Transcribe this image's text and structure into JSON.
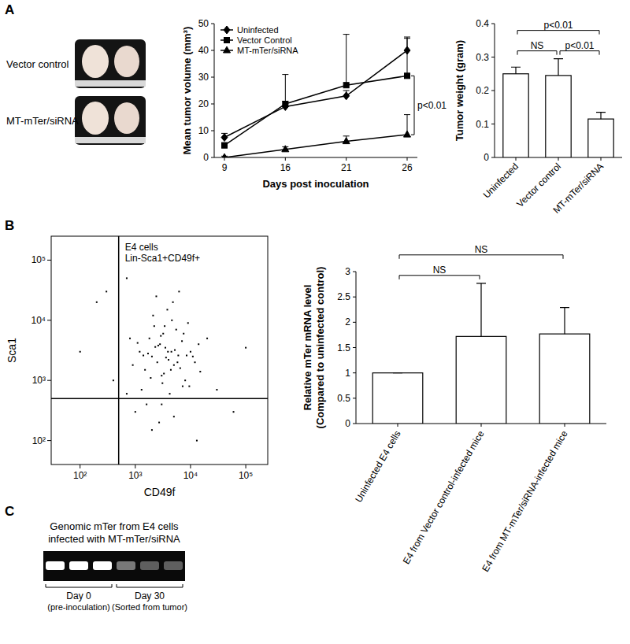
{
  "chart_data": [
    {
      "type": "line",
      "y_label": "Mean tumor volume (mm³)",
      "x_label": "Days post inoculation",
      "categories": [
        "9",
        "16",
        "21",
        "26"
      ],
      "ylim": [
        0,
        50
      ],
      "yticks": [
        0,
        10,
        20,
        30,
        40,
        50
      ],
      "legend": "upper left",
      "series": [
        {
          "name": "Uninfected",
          "color": "#000000",
          "marker": "diamond",
          "values": [
            7.5,
            19,
            23,
            40
          ],
          "errors": [
            1.5,
            2,
            2,
            5
          ]
        },
        {
          "name": "Vector Control",
          "color": "#000000",
          "marker": "square",
          "values": [
            4.5,
            20,
            27,
            30.5
          ],
          "errors": [
            1,
            11,
            19,
            14
          ]
        },
        {
          "name": "MT-mTer/siRNA",
          "color": "#000000",
          "marker": "triangle",
          "values": [
            0,
            3,
            6,
            8.5
          ],
          "errors": [
            0.5,
            1,
            2,
            7.5
          ]
        }
      ],
      "annotations": [
        {
          "between": [
            "Vector Control",
            "MT-mTer/siRNA"
          ],
          "at": "26",
          "label": "p<0.01"
        }
      ]
    },
    {
      "type": "bar",
      "y_label": "Tumor weight (gram)",
      "categories": [
        "Uninfected",
        "Vector control",
        "MT-mTer/siRNA"
      ],
      "values": [
        0.25,
        0.245,
        0.115
      ],
      "errors": [
        0.02,
        0.05,
        0.02
      ],
      "color": "#ffffff",
      "ylim": [
        0,
        0.4
      ],
      "yticks": [
        0,
        0.1,
        0.2,
        0.3,
        0.4
      ],
      "annotations": [
        {
          "between": [
            "Uninfected",
            "Vector control"
          ],
          "label": "NS"
        },
        {
          "between": [
            "Vector control",
            "MT-mTer/siRNA"
          ],
          "label": "p<0.01"
        },
        {
          "between": [
            "Uninfected",
            "MT-mTer/siRNA"
          ],
          "label": "p<0.01"
        }
      ]
    },
    {
      "type": "scatter",
      "title": [
        "E4 cells",
        "Lin-Sca1+CD49f+"
      ],
      "x_label": "CD49f",
      "y_label": "Sca1",
      "log": true,
      "xlim": [
        30,
        250000
      ],
      "ylim": [
        40,
        250000
      ],
      "xticks": [
        {
          "value": 100,
          "label": "10²"
        },
        {
          "value": 1000,
          "label": "10³"
        },
        {
          "value": 10000,
          "label": "10⁴"
        },
        {
          "value": 100000,
          "label": "10⁵"
        }
      ],
      "yticks": [
        {
          "value": 100,
          "label": "10²"
        },
        {
          "value": 1000,
          "label": "10³"
        },
        {
          "value": 10000,
          "label": "10⁴"
        },
        {
          "value": 100000,
          "label": "10⁵"
        }
      ],
      "x_gate": 500,
      "y_gate": 500,
      "color": "#000000",
      "x": [
        1200,
        1500,
        1800,
        2000,
        2200,
        2500,
        2800,
        3000,
        3200,
        3500,
        3800,
        4000,
        4500,
        5000,
        5500,
        6000,
        7000,
        8000,
        9000,
        10000,
        12000,
        15000,
        20000,
        1300,
        1700,
        2100,
        2600,
        3100,
        3600,
        4200,
        4800,
        5200,
        6500,
        7500,
        9500,
        1100,
        1400,
        1900,
        2400,
        2900,
        3300,
        3900,
        4600,
        5800,
        7200,
        11000,
        14000,
        900,
        800,
        1600,
        2300,
        2700,
        3400,
        4400,
        6200,
        8500,
        30000,
        60000,
        100000,
        300,
        200,
        100,
        400,
        700,
        1000,
        2000,
        3000,
        5000,
        700,
        13000
      ],
      "values": [
        3000,
        1500,
        5000,
        2500,
        8000,
        2000,
        4000,
        1200,
        6000,
        3500,
        15000,
        2200,
        3000,
        1800,
        7000,
        2600,
        4500,
        1000,
        9000,
        3000,
        2000,
        1400,
        5000,
        700,
        2800,
        12000,
        3800,
        900,
        2400,
        600,
        20000,
        3200,
        1600,
        6000,
        800,
        4200,
        2600,
        1100,
        25000,
        5500,
        1300,
        3000,
        10000,
        2000,
        800,
        2500,
        4000,
        1800,
        5000,
        400,
        3600,
        200,
        8000,
        1500,
        30000,
        2600,
        700,
        300,
        3500,
        30000,
        20000,
        3000,
        1000,
        600,
        300,
        150,
        400,
        250,
        50000,
        100
      ]
    },
    {
      "type": "bar",
      "y_label": [
        "Relative mTer mRNA level",
        "(Compared to uninfected control)"
      ],
      "categories": [
        "Uninfected E4 cells",
        "E4 from Vector control-infected mice",
        "E4 from MT-mTer/siRNA-infected mice"
      ],
      "values": [
        1,
        1.72,
        1.77
      ],
      "errors": [
        0,
        1.05,
        0.52
      ],
      "color": "#ffffff",
      "ylim": [
        0,
        3
      ],
      "yticks": [
        0,
        0.5,
        1,
        1.5,
        2,
        2.5,
        3
      ],
      "annotations": [
        {
          "between": [
            "Uninfected E4 cells",
            "E4 from Vector control-infected mice"
          ],
          "label": "NS"
        },
        {
          "between": [
            "Uninfected E4 cells",
            "E4 from MT-mTer/siRNA-infected mice"
          ],
          "label": "NS"
        }
      ]
    }
  ],
  "figure": {
    "panel_labels": [
      "A",
      "B",
      "C"
    ],
    "photo_labels": [
      "Vector control",
      "MT-mTer/siRNA"
    ],
    "gel": {
      "title": [
        "Genomic mTer from E4 cells",
        "infected with MT-mTer/siRNA"
      ],
      "lanes": [
        {
          "label": "Day 0",
          "sublabel": "(pre-inoculation)",
          "band_intensity": [
            1,
            1,
            1
          ]
        },
        {
          "label": "Day 30",
          "sublabel": "(Sorted from tumor)",
          "band_intensity": [
            0.45,
            0.35,
            0.35
          ]
        }
      ]
    }
  }
}
